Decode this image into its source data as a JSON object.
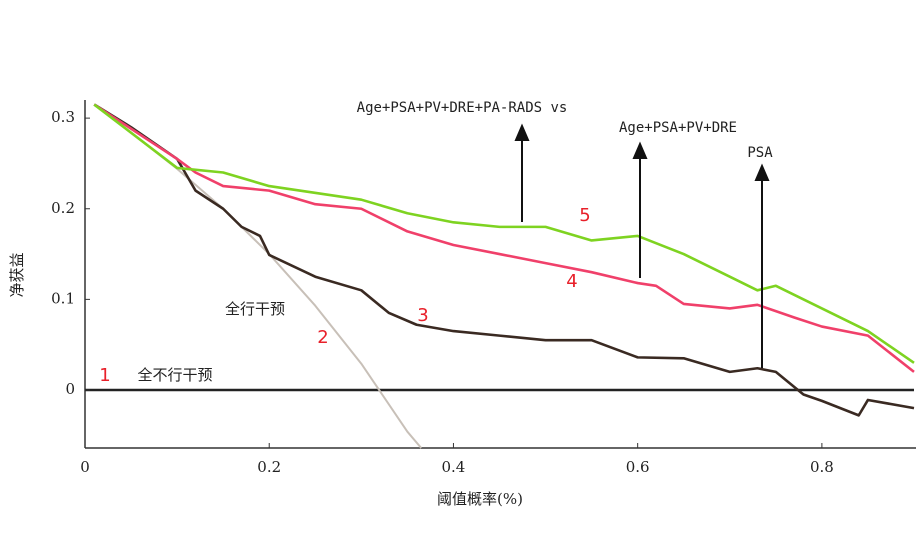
{
  "chart_data": {
    "type": "line",
    "xlabel": "阈值概率(%)",
    "ylabel": "净获益",
    "xlim": [
      0,
      0.9
    ],
    "ylim": [
      -0.064,
      0.32
    ],
    "xticks": [
      0,
      0.2,
      0.4,
      0.6,
      0.8
    ],
    "yticks": [
      0,
      0.1,
      0.2,
      0.3
    ],
    "series": [
      {
        "color": "#222222",
        "x": [
          0,
          0.9
        ],
        "values": [
          0,
          0
        ]
      },
      {
        "color": "#c8c0b8",
        "x": [
          0.01,
          0.05,
          0.1,
          0.15,
          0.2,
          0.25,
          0.3,
          0.35,
          0.365
        ],
        "values": [
          0.315,
          0.284,
          0.244,
          0.2,
          0.15,
          0.093,
          0.029,
          -0.046,
          -0.064
        ]
      },
      {
        "color": "#3a2a22",
        "x": [
          0.01,
          0.05,
          0.1,
          0.12,
          0.15,
          0.17,
          0.19,
          0.2,
          0.25,
          0.3,
          0.33,
          0.36,
          0.4,
          0.45,
          0.5,
          0.55,
          0.6,
          0.65,
          0.7,
          0.73,
          0.75,
          0.78,
          0.8,
          0.84,
          0.85,
          0.9
        ],
        "values": [
          0.315,
          0.29,
          0.255,
          0.22,
          0.2,
          0.18,
          0.17,
          0.149,
          0.125,
          0.11,
          0.085,
          0.072,
          0.065,
          0.06,
          0.055,
          0.055,
          0.036,
          0.035,
          0.02,
          0.024,
          0.02,
          -0.005,
          -0.012,
          -0.028,
          -0.011,
          -0.02
        ]
      },
      {
        "color": "#f0406a",
        "x": [
          0.01,
          0.1,
          0.12,
          0.15,
          0.2,
          0.25,
          0.3,
          0.35,
          0.4,
          0.45,
          0.5,
          0.55,
          0.6,
          0.62,
          0.65,
          0.7,
          0.73,
          0.77,
          0.8,
          0.85,
          0.9
        ],
        "values": [
          0.315,
          0.255,
          0.24,
          0.225,
          0.22,
          0.205,
          0.2,
          0.175,
          0.16,
          0.15,
          0.14,
          0.13,
          0.118,
          0.115,
          0.095,
          0.09,
          0.094,
          0.08,
          0.07,
          0.06,
          0.02
        ]
      },
      {
        "color": "#7ed321",
        "x": [
          0.01,
          0.1,
          0.15,
          0.2,
          0.3,
          0.35,
          0.4,
          0.45,
          0.5,
          0.55,
          0.6,
          0.65,
          0.7,
          0.73,
          0.75,
          0.8,
          0.85,
          0.9
        ],
        "values": [
          0.315,
          0.245,
          0.24,
          0.225,
          0.21,
          0.195,
          0.185,
          0.18,
          0.18,
          0.165,
          0.17,
          0.15,
          0.125,
          0.11,
          0.115,
          0.09,
          0.065,
          0.03
        ]
      }
    ],
    "annotations": [
      "Age+PSA+PV+DRE+PA-RADS vs",
      "Age+PSA+PV+DRE",
      "PSA",
      "全行干预",
      "全不行干预"
    ],
    "curve_numbers": [
      "1",
      "2",
      "3",
      "4",
      "5"
    ]
  }
}
